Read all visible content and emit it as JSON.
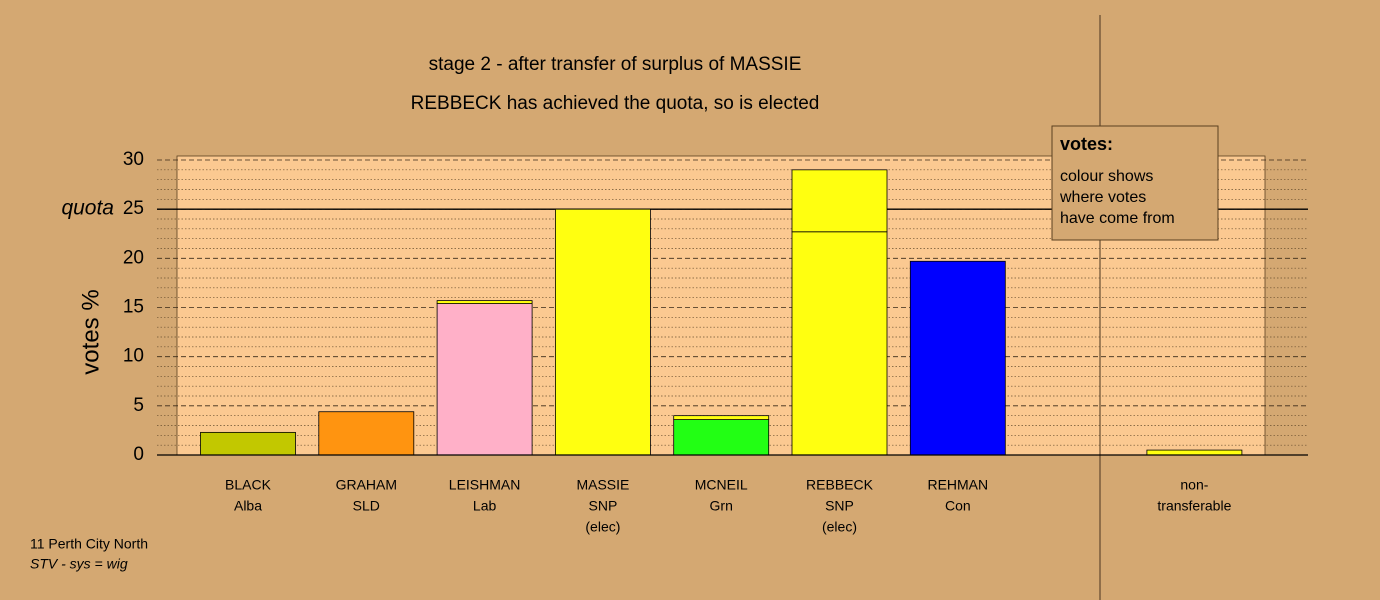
{
  "chart_data": {
    "type": "stacked_bar",
    "title": "stage 2 - after transfer of surplus of MASSIE",
    "subtitle": "REBBECK has achieved the quota, so is elected",
    "y_label": "votes %",
    "categories": [
      [
        "BLACK",
        "Alba"
      ],
      [
        "GRAHAM",
        "SLD"
      ],
      [
        "LEISHMAN",
        "Lab"
      ],
      [
        "MASSIE",
        "SNP",
        "(elec)"
      ],
      [
        "MCNEIL",
        "Grn"
      ],
      [
        "REBBECK",
        "SNP",
        "(elec)"
      ],
      [
        "REHMAN",
        "Con"
      ],
      null,
      [
        "non-",
        "transferable"
      ]
    ],
    "series": [
      {
        "colors": [
          "#c2c800",
          "#ff9410",
          "#ffb0c8",
          "#ffff10",
          "#22ff14",
          "#ffff10",
          "#0000ff",
          null,
          "#ffff10"
        ],
        "values": [
          2.3,
          4.4,
          15.4,
          25,
          3.6,
          22.7,
          19.7,
          null,
          0
        ]
      },
      {
        "color": "#ffff10",
        "values": [
          0,
          0,
          0.3,
          0,
          0.4,
          6.3,
          0,
          null,
          0.5
        ]
      }
    ],
    "quota": {
      "value": 25,
      "label": "quota"
    },
    "ylim": [
      0,
      30
    ],
    "yticks": [
      0,
      5,
      10,
      15,
      20,
      25,
      30
    ],
    "yminorticks": [
      1,
      2,
      3,
      4,
      6,
      7,
      8,
      9,
      11,
      12,
      13,
      14,
      16,
      17,
      18,
      19,
      21,
      22,
      23,
      24,
      26,
      27,
      28,
      29
    ],
    "grid": true,
    "legend": {
      "title": "votes:",
      "lines": [
        "colour shows",
        "where votes",
        "have come from"
      ]
    },
    "footnote": [
      "11 Perth City North",
      "STV - sys = wig"
    ]
  }
}
